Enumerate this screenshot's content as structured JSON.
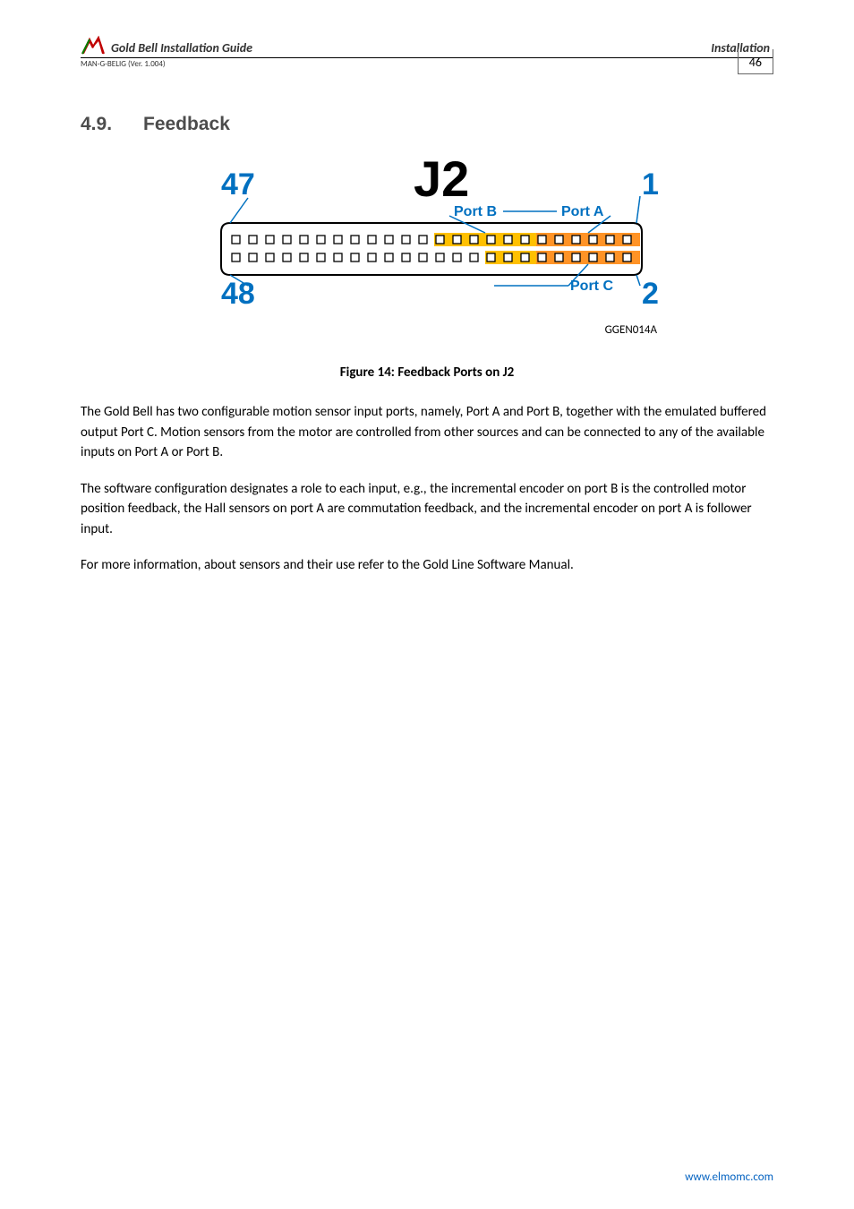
{
  "header": {
    "title": "Gold Bell Installation Guide",
    "right": "Installation",
    "sub": "MAN-G-BELIG (Ver. 1.004)",
    "page_num": "46"
  },
  "section": {
    "num": "4.9.",
    "title": "Feedback"
  },
  "figure": {
    "big_label": "J2",
    "top_left_num": "47",
    "top_right_num": "1",
    "bottom_left_num": "48",
    "bottom_right_num": "2",
    "port_b_label": "Port B",
    "port_a_label": "Port A",
    "port_c_label": "Port C",
    "id": "GGEN014A",
    "caption": "Figure 14: Feedback Ports on J2",
    "colors": {
      "pin_outline": "#000000",
      "connector_outline": "#000000",
      "highlight_portb": "#ffc000",
      "highlight_portb_light": "#ffe08a",
      "highlight_porta": "#ff9326",
      "highlight_portc": "#ff9326",
      "label_port": "#0070c0",
      "num_color": "#0070c0",
      "j2_color": "#000000"
    },
    "pins": {
      "cols": 24,
      "rows": 2,
      "top_row_full_highlight_start": 12,
      "bottom_row_portc_highlight_start": 15
    }
  },
  "paragraphs": {
    "p1": "The Gold Bell has two configurable motion sensor input ports, namely, Port A and Port B, together with the emulated buffered output Port C. Motion sensors from the motor are controlled from other sources and can be connected to any of the available inputs on Port A or Port B.",
    "p2": "The software configuration designates a role to each input, e.g., the incremental encoder on port B is the controlled motor position feedback, the Hall sensors on port A are commutation feedback, and the incremental encoder on port A is follower input.",
    "p3": "For more information, about sensors and their use refer to the Gold Line Software Manual."
  },
  "footer": {
    "link": "www.elmomc.com"
  }
}
